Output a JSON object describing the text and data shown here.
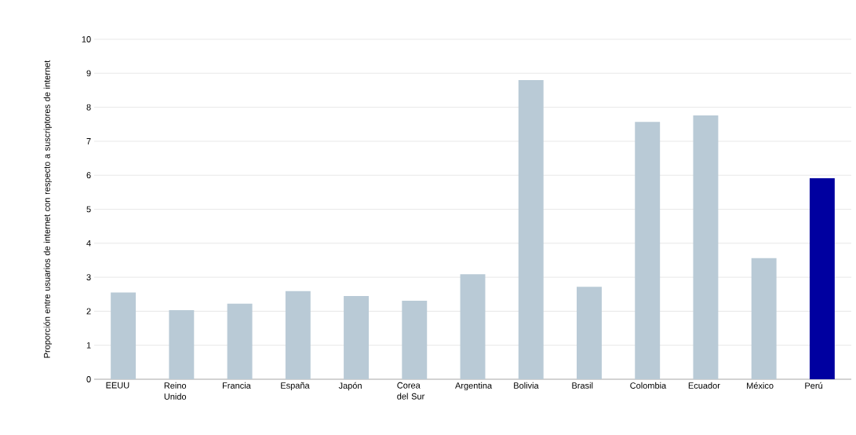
{
  "chart_data": {
    "type": "bar",
    "ylabel": "Proporción entre usuarios de internet con respecto a suscriptores de internet",
    "categories": [
      "EEUU",
      "Reino Unido",
      "Francia",
      "España",
      "Japón",
      "Corea del Sur",
      "Argentina",
      "Bolivia",
      "Brasil",
      "Colombia",
      "Ecuador",
      "México",
      "Perú"
    ],
    "values": [
      2.55,
      2.03,
      2.22,
      2.59,
      2.45,
      2.31,
      3.09,
      8.8,
      2.72,
      7.57,
      7.76,
      3.56,
      5.91
    ],
    "colors": [
      "#b9cad6",
      "#b9cad6",
      "#b9cad6",
      "#b9cad6",
      "#b9cad6",
      "#b9cad6",
      "#b9cad6",
      "#b9cad6",
      "#b9cad6",
      "#b9cad6",
      "#b9cad6",
      "#b9cad6",
      "#0000a0"
    ],
    "ylim": [
      0,
      10
    ],
    "yticks": [
      0,
      1,
      2,
      3,
      4,
      5,
      6,
      7,
      8,
      9,
      10
    ],
    "grid": "y"
  }
}
